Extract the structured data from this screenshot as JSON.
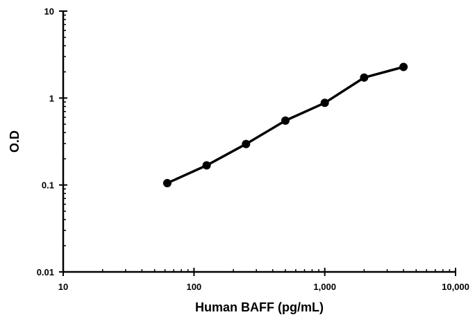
{
  "chart_data": {
    "type": "line",
    "title": "",
    "xlabel": "Human BAFF (pg/mL)",
    "ylabel": "O.D",
    "x_scale": "log",
    "y_scale": "log",
    "xlim": [
      10,
      10000
    ],
    "ylim": [
      0.01,
      10
    ],
    "x_ticks": [
      {
        "value": 10,
        "label": "10"
      },
      {
        "value": 100,
        "label": "100"
      },
      {
        "value": 1000,
        "label": "1,000"
      },
      {
        "value": 10000,
        "label": "10,000"
      }
    ],
    "y_ticks": [
      {
        "value": 0.01,
        "label": "0.01"
      },
      {
        "value": 0.1,
        "label": "0.1"
      },
      {
        "value": 1,
        "label": "1"
      },
      {
        "value": 10,
        "label": "10"
      }
    ],
    "grid": false,
    "legend": "none",
    "series": [
      {
        "color": "#000000",
        "marker": "circle",
        "points": [
          {
            "x": 62.5,
            "y": 0.105
          },
          {
            "x": 125,
            "y": 0.168
          },
          {
            "x": 250,
            "y": 0.296
          },
          {
            "x": 500,
            "y": 0.55
          },
          {
            "x": 1000,
            "y": 0.88
          },
          {
            "x": 2000,
            "y": 1.72
          },
          {
            "x": 4000,
            "y": 2.28
          }
        ]
      }
    ]
  }
}
